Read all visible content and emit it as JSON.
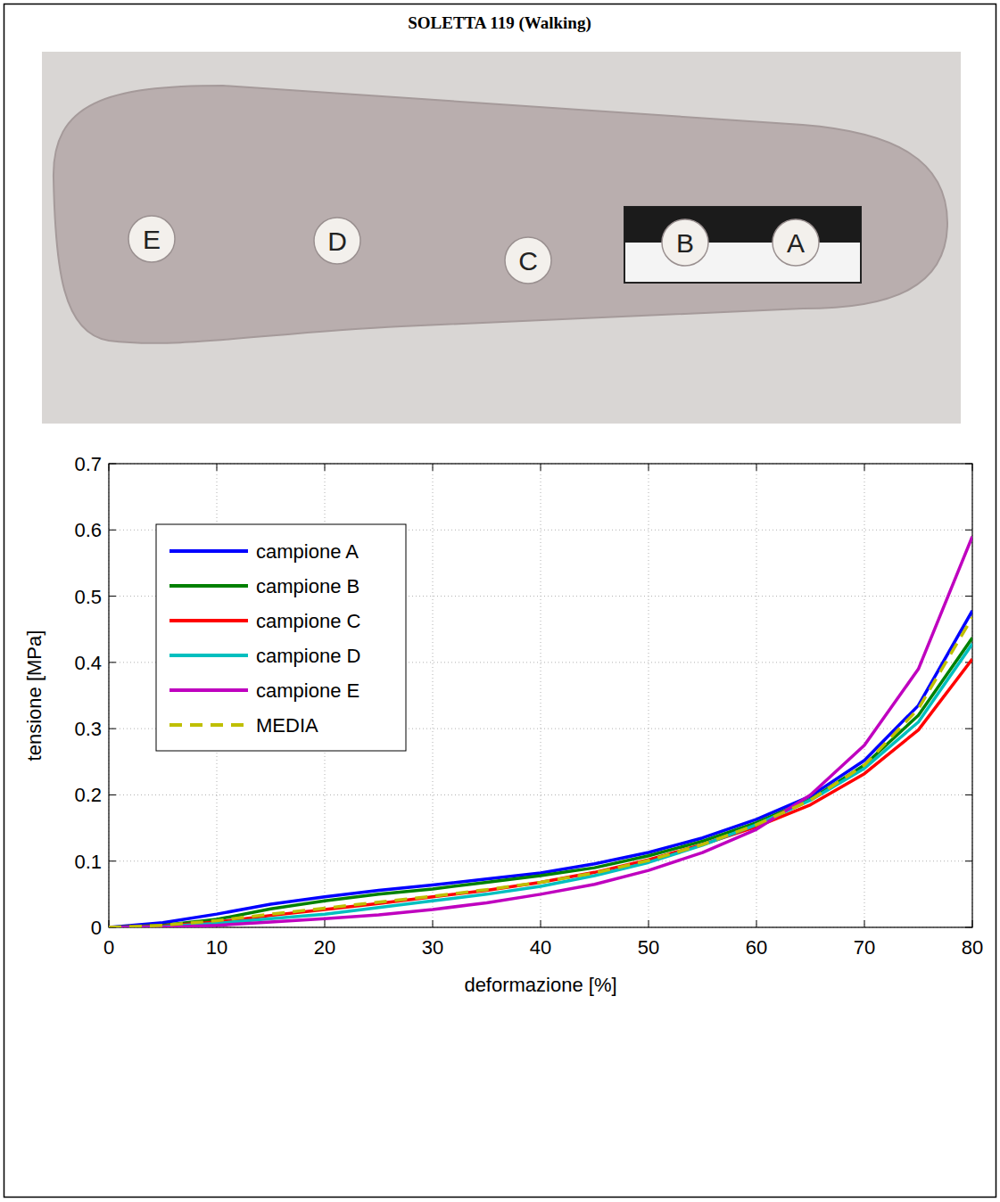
{
  "chart_data": {
    "type": "line",
    "title": "SOLETTA 119 (Walking)",
    "x_label": "deformazione [%]",
    "y_label": "tensione [MPa]",
    "x": [
      0,
      5,
      10,
      15,
      20,
      25,
      30,
      35,
      40,
      45,
      50,
      55,
      60,
      65,
      70,
      75,
      80
    ],
    "series": [
      {
        "name": "campione A",
        "color": "#0000ff",
        "line_style": "solid",
        "values": [
          0,
          0.007,
          0.02,
          0.035,
          0.046,
          0.056,
          0.064,
          0.073,
          0.082,
          0.096,
          0.113,
          0.135,
          0.163,
          0.198,
          0.252,
          0.335,
          0.478
        ]
      },
      {
        "name": "campione B",
        "color": "#008000",
        "line_style": "solid",
        "values": [
          0,
          0.003,
          0.012,
          0.028,
          0.04,
          0.05,
          0.058,
          0.068,
          0.078,
          0.09,
          0.108,
          0.13,
          0.158,
          0.193,
          0.245,
          0.32,
          0.437
        ]
      },
      {
        "name": "campione C",
        "color": "#ff0000",
        "line_style": "solid",
        "values": [
          0,
          0.002,
          0.008,
          0.018,
          0.027,
          0.036,
          0.046,
          0.056,
          0.068,
          0.083,
          0.102,
          0.125,
          0.152,
          0.185,
          0.232,
          0.298,
          0.405
        ]
      },
      {
        "name": "campione D",
        "color": "#00bfbf",
        "line_style": "solid",
        "values": [
          0,
          0.001,
          0.006,
          0.013,
          0.02,
          0.03,
          0.04,
          0.05,
          0.062,
          0.078,
          0.098,
          0.124,
          0.155,
          0.192,
          0.24,
          0.31,
          0.428
        ]
      },
      {
        "name": "campione E",
        "color": "#bf00bf",
        "line_style": "solid",
        "values": [
          0,
          0,
          0.003,
          0.008,
          0.013,
          0.019,
          0.027,
          0.037,
          0.05,
          0.065,
          0.086,
          0.113,
          0.148,
          0.2,
          0.275,
          0.39,
          0.59
        ]
      },
      {
        "name": "MEDIA",
        "color": "#bfbf00",
        "line_style": "dashed",
        "values": [
          0,
          0.003,
          0.01,
          0.02,
          0.029,
          0.038,
          0.047,
          0.057,
          0.068,
          0.082,
          0.101,
          0.125,
          0.155,
          0.192,
          0.245,
          0.33,
          0.468
        ]
      }
    ],
    "xlim": [
      0,
      80
    ],
    "xticks": [
      0,
      10,
      20,
      30,
      40,
      50,
      60,
      70,
      80
    ],
    "ylim": [
      0,
      0.7
    ],
    "yticks": [
      0,
      0.1,
      0.2,
      0.3,
      0.4,
      0.5,
      0.6,
      0.7
    ],
    "grid": true,
    "legend": "upper left"
  },
  "photo": {
    "sample_labels": [
      "E",
      "D",
      "C",
      "B",
      "A"
    ]
  }
}
